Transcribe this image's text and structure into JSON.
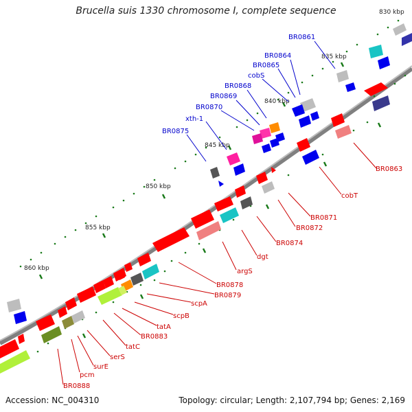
{
  "title": "Brucella suis 1330 chromosome I, complete sequence",
  "footer": {
    "accession": "Accession: NC_004310",
    "summary": "Topology: circular; Length: 2,107,794 bp; Genes: 2,169"
  },
  "ticks": [
    "830 kbp",
    "835 kbp",
    "840 kbp",
    "845 kbp",
    "850 kbp",
    "855 kbp",
    "860 kbp"
  ],
  "labels_top": [
    "BR0861",
    "BR0864",
    "BR0865",
    "cobS",
    "BR0868",
    "BR0869",
    "BR0870",
    "xth-1",
    "BR0875"
  ],
  "labels_bottom": [
    "BR0863",
    "cobT",
    "BR0871",
    "BR0872",
    "BR0874",
    "dgt",
    "argS",
    "BR0878",
    "BR0879",
    "scpA",
    "scpB",
    "tatA",
    "BR0883",
    "tatC",
    "serS",
    "surE",
    "pcm",
    "BR0888"
  ],
  "colors": {
    "label_top": "#0000cc",
    "label_bottom": "#cc0000",
    "backbone": "#808080",
    "tick": "#1a7a1a"
  }
}
